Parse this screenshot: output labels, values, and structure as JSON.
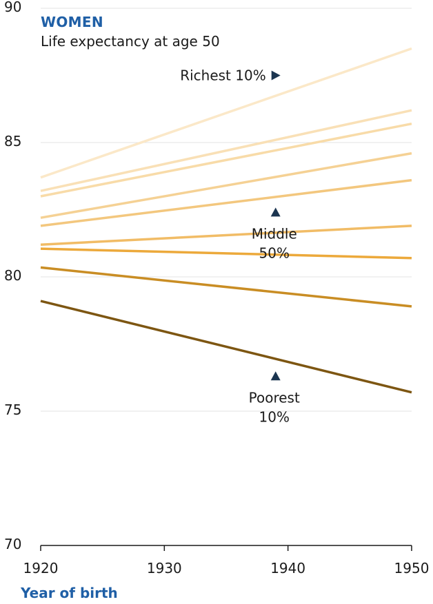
{
  "chart_data": {
    "type": "line",
    "title": "WOMEN",
    "subtitle": "Life expectancy at age 50",
    "xlabel": "Year of birth",
    "ylabel": "",
    "x": [
      1920,
      1950
    ],
    "xlim": [
      1920,
      1950
    ],
    "ylim": [
      70,
      90
    ],
    "xticks": [
      1920,
      1930,
      1940,
      1950
    ],
    "yticks": [
      70,
      75,
      80,
      85,
      90
    ],
    "grid": "horizontal",
    "series": [
      {
        "values": [
          83.7,
          88.5
        ],
        "color": "#fbe8c8"
      },
      {
        "values": [
          83.2,
          86.2
        ],
        "color": "#f9e0b6"
      },
      {
        "values": [
          83.0,
          85.7
        ],
        "color": "#f8dba8"
      },
      {
        "values": [
          82.2,
          84.6
        ],
        "color": "#f5d194"
      },
      {
        "values": [
          81.9,
          83.6
        ],
        "color": "#f3c77e"
      },
      {
        "values": [
          81.2,
          81.9
        ],
        "color": "#f1bc66"
      },
      {
        "values": [
          81.05,
          80.7
        ],
        "color": "#eca93b"
      },
      {
        "values": [
          80.35,
          78.9
        ],
        "color": "#c98d24"
      },
      {
        "values": [
          79.1,
          75.7
        ],
        "color": "#7d5612"
      }
    ],
    "annotations": [
      {
        "lines": [
          "Richest 10%"
        ],
        "marker": "triangle-right",
        "x": 1939,
        "y": 87.5,
        "marker_color": "#1b3550"
      },
      {
        "lines": [
          "Middle",
          "50%"
        ],
        "marker": "triangle-up",
        "x": 1939,
        "y": 82.4,
        "marker_color": "#1b3550"
      },
      {
        "lines": [
          "Poorest",
          "10%"
        ],
        "marker": "triangle-up",
        "x": 1939,
        "y": 76.3,
        "marker_color": "#1b3550"
      }
    ]
  }
}
